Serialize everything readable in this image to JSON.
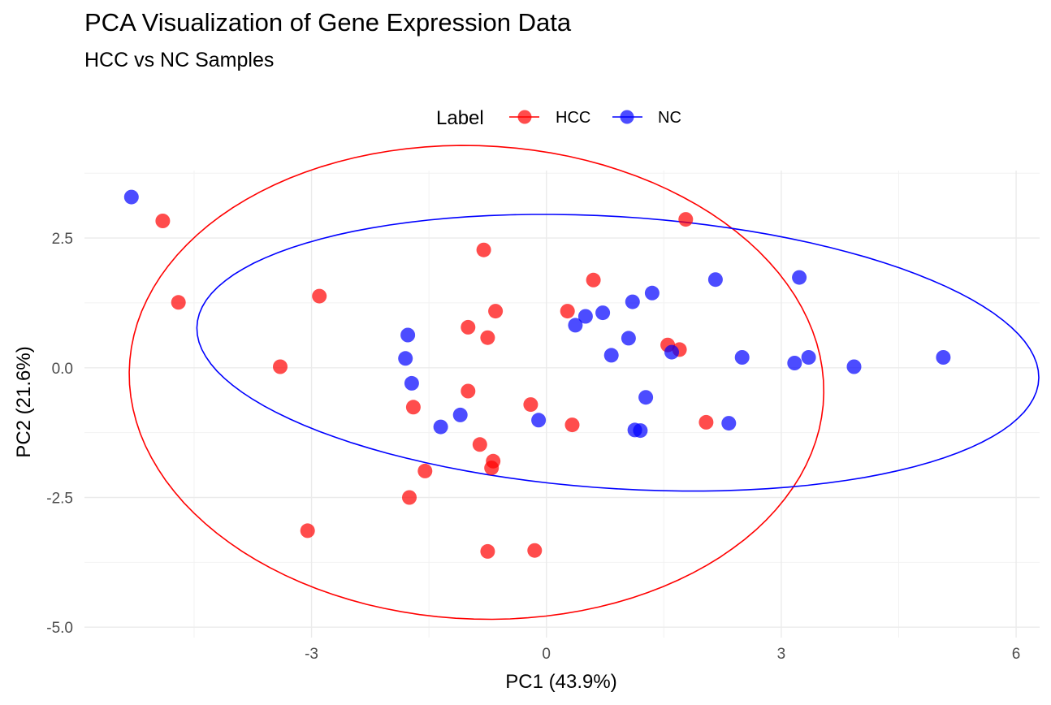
{
  "chart_data": {
    "type": "scatter",
    "title": "PCA Visualization of Gene Expression Data",
    "subtitle": "HCC vs NC Samples",
    "xlabel": "PC1 (43.9%)",
    "ylabel": "PC2 (21.6%)",
    "xlim": [
      -5.9,
      6.3
    ],
    "ylim": [
      -5.2,
      3.8
    ],
    "x_ticks": [
      -3,
      0,
      3,
      6
    ],
    "x_tick_labels": [
      "-3",
      "0",
      "3",
      "6"
    ],
    "y_ticks": [
      -5.0,
      -2.5,
      0.0,
      2.5
    ],
    "y_tick_labels": [
      "-5.0",
      "-2.5",
      "0.0",
      "2.5"
    ],
    "grid": true,
    "legend": {
      "title": "Label",
      "position": "top",
      "entries": [
        "HCC",
        "NC"
      ]
    },
    "series": [
      {
        "name": "HCC",
        "color": "#ff0000",
        "points": [
          [
            -4.9,
            2.83
          ],
          [
            -4.7,
            1.26
          ],
          [
            -3.4,
            0.02
          ],
          [
            -2.9,
            1.38
          ],
          [
            -3.05,
            -3.14
          ],
          [
            -1.7,
            -0.76
          ],
          [
            -1.75,
            -2.5
          ],
          [
            -1.55,
            -1.99
          ],
          [
            -1.0,
            0.78
          ],
          [
            -1.0,
            -0.45
          ],
          [
            -0.85,
            -1.48
          ],
          [
            -0.8,
            2.27
          ],
          [
            -0.75,
            0.58
          ],
          [
            -0.7,
            -1.93
          ],
          [
            -0.68,
            -1.8
          ],
          [
            -0.65,
            1.09
          ],
          [
            -0.75,
            -3.54
          ],
          [
            -0.2,
            -0.71
          ],
          [
            -0.15,
            -3.52
          ],
          [
            0.27,
            1.09
          ],
          [
            0.33,
            -1.1
          ],
          [
            0.6,
            1.69
          ],
          [
            1.55,
            0.44
          ],
          [
            1.7,
            0.35
          ],
          [
            1.78,
            2.86
          ],
          [
            2.04,
            -1.05
          ]
        ],
        "ellipse_label": "HCC 95% ellipse"
      },
      {
        "name": "NC",
        "color": "#0000ff",
        "points": [
          [
            -5.3,
            3.29
          ],
          [
            -1.77,
            0.63
          ],
          [
            -1.8,
            0.18
          ],
          [
            -1.72,
            -0.3
          ],
          [
            -1.35,
            -1.14
          ],
          [
            -1.1,
            -0.91
          ],
          [
            -0.1,
            -1.01
          ],
          [
            0.37,
            0.82
          ],
          [
            0.5,
            0.99
          ],
          [
            0.72,
            1.06
          ],
          [
            0.83,
            0.24
          ],
          [
            1.05,
            0.57
          ],
          [
            1.1,
            1.27
          ],
          [
            1.13,
            -1.2
          ],
          [
            1.2,
            -1.21
          ],
          [
            1.27,
            -0.57
          ],
          [
            1.35,
            1.44
          ],
          [
            1.6,
            0.3
          ],
          [
            2.16,
            1.7
          ],
          [
            2.33,
            -1.07
          ],
          [
            2.5,
            0.2
          ],
          [
            3.17,
            0.09
          ],
          [
            3.23,
            1.74
          ],
          [
            3.35,
            0.2
          ],
          [
            3.93,
            0.02
          ],
          [
            5.07,
            0.2
          ]
        ],
        "ellipse_label": "NC 95% ellipse"
      }
    ]
  }
}
